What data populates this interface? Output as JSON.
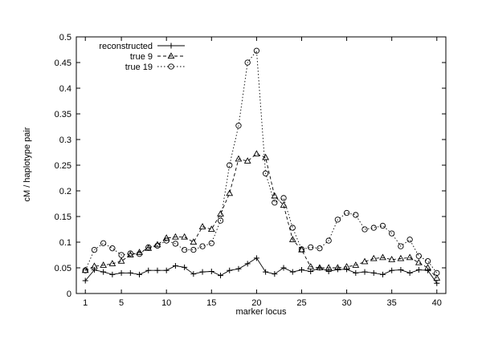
{
  "chart_data": {
    "type": "line",
    "title": "",
    "xlabel": "marker locus",
    "ylabel": "cM / haplotype pair",
    "xlim": [
      0,
      41
    ],
    "ylim": [
      0,
      0.5
    ],
    "x_ticks": [
      1,
      5,
      10,
      15,
      20,
      25,
      30,
      35,
      40
    ],
    "y_ticks": [
      0,
      0.05,
      0.1,
      0.15,
      0.2,
      0.25,
      0.3,
      0.35,
      0.4,
      0.45,
      0.5
    ],
    "x_tick_labels": [
      "1",
      "5",
      "10",
      "15",
      "20",
      "25",
      "30",
      "35",
      "40"
    ],
    "y_tick_labels": [
      "0",
      "0.05",
      "0.1",
      "0.15",
      "0.2",
      "0.25",
      "0.3",
      "0.35",
      "0.4",
      "0.45",
      "0.5"
    ],
    "grid": false,
    "legend_position": "top-left",
    "x": [
      1,
      2,
      3,
      4,
      5,
      6,
      7,
      8,
      9,
      10,
      11,
      12,
      13,
      14,
      15,
      16,
      17,
      18,
      19,
      20,
      21,
      22,
      23,
      24,
      25,
      26,
      27,
      28,
      29,
      30,
      31,
      32,
      33,
      34,
      35,
      36,
      37,
      38,
      39,
      40
    ],
    "series": [
      {
        "name": "reconstructed",
        "marker": "plus",
        "dash": "solid",
        "values": [
          0.025,
          0.046,
          0.042,
          0.037,
          0.04,
          0.04,
          0.037,
          0.045,
          0.045,
          0.045,
          0.054,
          0.051,
          0.038,
          0.042,
          0.043,
          0.035,
          0.045,
          0.048,
          0.058,
          0.069,
          0.042,
          0.038,
          0.05,
          0.042,
          0.046,
          0.043,
          0.05,
          0.043,
          0.047,
          0.047,
          0.04,
          0.042,
          0.04,
          0.037,
          0.045,
          0.046,
          0.04,
          0.046,
          0.045,
          0.02
        ]
      },
      {
        "name": "true 9",
        "marker": "triangle",
        "dash": "dashed",
        "values": [
          0.045,
          0.053,
          0.055,
          0.058,
          0.063,
          0.075,
          0.08,
          0.088,
          0.095,
          0.108,
          0.11,
          0.11,
          0.1,
          0.13,
          0.125,
          0.155,
          0.195,
          0.262,
          0.258,
          0.272,
          0.265,
          0.19,
          0.172,
          0.105,
          0.085,
          0.052,
          0.05,
          0.05,
          0.05,
          0.052,
          0.055,
          0.062,
          0.068,
          0.07,
          0.066,
          0.068,
          0.07,
          0.06,
          0.05,
          0.03
        ]
      },
      {
        "name": "true 19",
        "marker": "circle",
        "dash": "dotted",
        "values": [
          0.045,
          0.085,
          0.098,
          0.088,
          0.075,
          0.078,
          0.077,
          0.09,
          0.093,
          0.103,
          0.097,
          0.085,
          0.085,
          0.092,
          0.098,
          0.142,
          0.25,
          0.327,
          0.45,
          0.473,
          0.234,
          0.177,
          0.186,
          0.128,
          0.086,
          0.09,
          0.088,
          0.103,
          0.144,
          0.157,
          0.153,
          0.125,
          0.128,
          0.132,
          0.117,
          0.092,
          0.105,
          0.073,
          0.063,
          0.04
        ]
      }
    ]
  }
}
